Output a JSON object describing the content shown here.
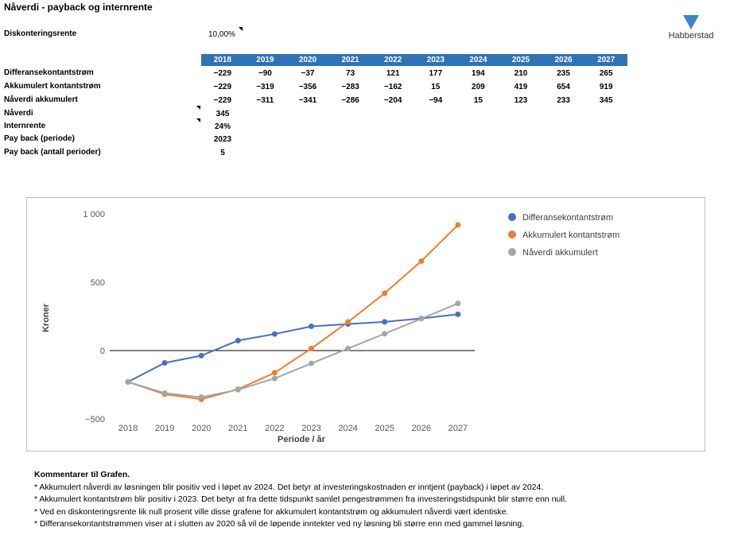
{
  "title": "Nåverdi - payback og internrente",
  "discount": {
    "label": "Diskonteringsrente",
    "value": "10,00%"
  },
  "logo": {
    "text": "Habberstad",
    "color": "#3b86c6"
  },
  "table": {
    "years": [
      "2018",
      "2019",
      "2020",
      "2021",
      "2022",
      "2023",
      "2024",
      "2025",
      "2026",
      "2027"
    ],
    "rows": [
      {
        "label": "Differansekontantstrøm",
        "values": [
          "−229",
          "−90",
          "−37",
          "73",
          "121",
          "177",
          "194",
          "210",
          "235",
          "265"
        ]
      },
      {
        "label": "Akkumulert kontantstrøm",
        "values": [
          "−229",
          "−319",
          "−356",
          "−283",
          "−162",
          "15",
          "209",
          "419",
          "654",
          "919"
        ]
      },
      {
        "label": "Nåverdi akkumulert",
        "values": [
          "−229",
          "−311",
          "−341",
          "−286",
          "−204",
          "−94",
          "15",
          "123",
          "233",
          "345"
        ]
      }
    ],
    "header_color": "#2f73b6"
  },
  "summary": [
    {
      "label": "Nåverdi",
      "value": "345"
    },
    {
      "label": "Internrente",
      "value": "24%"
    },
    {
      "label": "Pay back (periode)",
      "value": "2023"
    },
    {
      "label": "Pay back (antall perioder)",
      "value": "5"
    }
  ],
  "chart_data": {
    "type": "line",
    "x": [
      2018,
      2019,
      2020,
      2021,
      2022,
      2023,
      2024,
      2025,
      2026,
      2027
    ],
    "categories": [
      "2018",
      "2019",
      "2020",
      "2021",
      "2022",
      "2023",
      "2024",
      "2025",
      "2026",
      "2027"
    ],
    "series": [
      {
        "name": "Differansekontantstrøm",
        "color": "#4472c4",
        "values": [
          -229,
          -90,
          -37,
          73,
          121,
          177,
          194,
          210,
          235,
          265
        ]
      },
      {
        "name": "Akkumulert kontantstrøm",
        "color": "#ed7d31",
        "values": [
          -229,
          -319,
          -356,
          -283,
          -162,
          15,
          209,
          419,
          654,
          919
        ]
      },
      {
        "name": "Nåverdi akkumulert",
        "color": "#a5a5a5",
        "values": [
          -229,
          -311,
          -341,
          -286,
          -204,
          -94,
          15,
          123,
          233,
          345
        ]
      }
    ],
    "ylim": [
      -500,
      1000
    ],
    "yticks": [
      -500,
      0,
      500,
      1000
    ],
    "ytick_labels": [
      "−500",
      "0",
      "500",
      "1 000"
    ],
    "xlabel": "Periode / år",
    "ylabel": "Kroner",
    "legend": "top-right",
    "grid": false
  },
  "comments": {
    "heading": "Kommentarer til Grafen.",
    "lines": [
      "* Akkumulert nåverdi av løsningen blir positiv ved i løpet av 2024. Det betyr at investeringskostnaden er inntjent (payback) i løpet av 2024.",
      "* Akkumulert kontantstrøm blir positiv i 2023. Det betyr at fra dette tidspunkt samlet pengestrømmen fra investeringstidspunkt blir større enn null.",
      "* Ved en diskonteringsrente lik null prosent ville disse grafene for akkumulert kontantstrøm og akkumulert nåverdi vært identiske.",
      "* Differansekontantstrømmen viser at i slutten av 2020 så vil de løpende inntekter ved ny løsning bli større enn med gammel løsning."
    ]
  }
}
